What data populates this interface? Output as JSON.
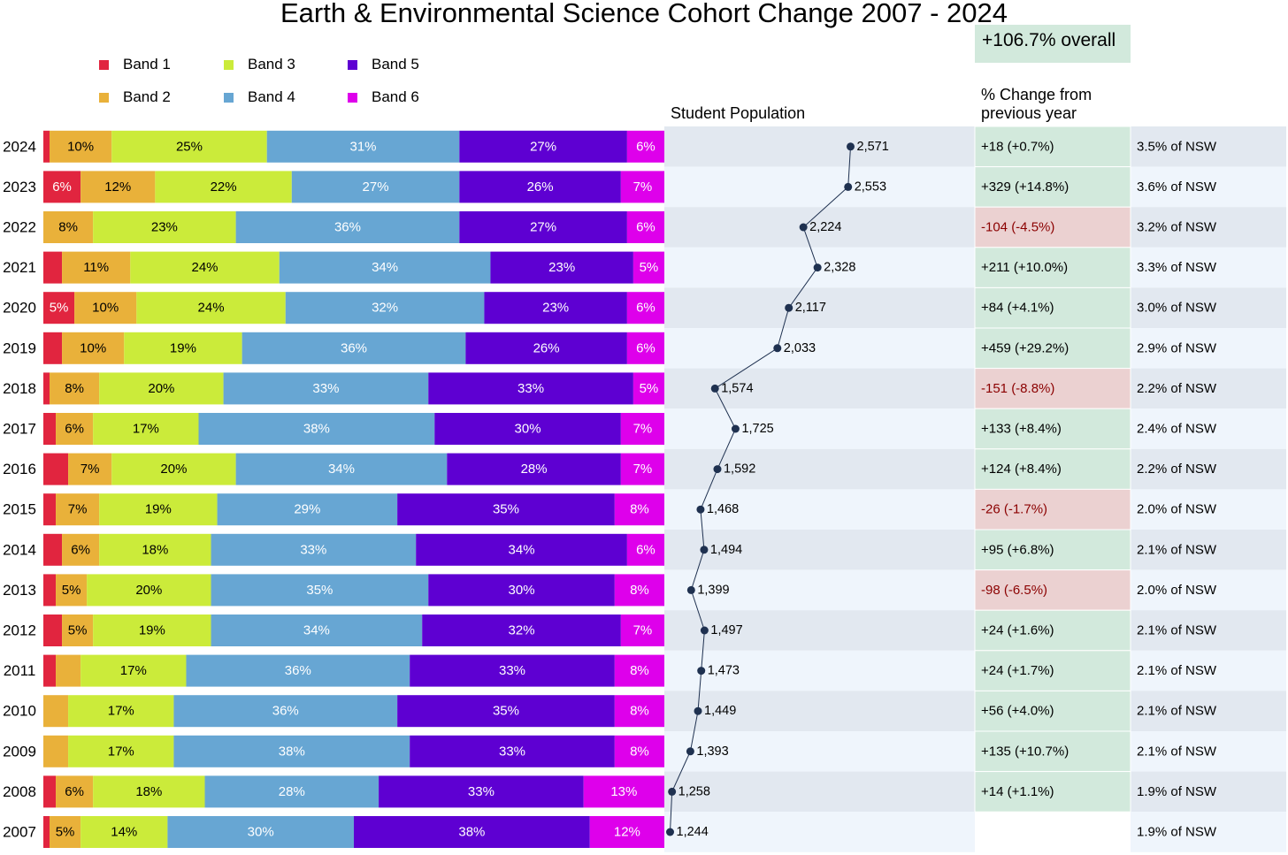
{
  "chart_data": {
    "type": "bar",
    "title": "Earth & Environmental Science Cohort Change 2007 - 2024",
    "overall_change": "+106.7% overall",
    "legend": [
      {
        "name": "Band 1",
        "color": "#e1253f"
      },
      {
        "name": "Band 2",
        "color": "#e9b13a"
      },
      {
        "name": "Band 3",
        "color": "#cbeb3a"
      },
      {
        "name": "Band 4",
        "color": "#67a6d3"
      },
      {
        "name": "Band 5",
        "color": "#5e00d2"
      },
      {
        "name": "Band 6",
        "color": "#de00eb"
      }
    ],
    "population_header": "Student Population",
    "change_header": "% Change from previous year",
    "label_colors": {
      "band1": "#ffffff",
      "band2": "#000000",
      "band3": "#000000",
      "band4": "#ffffff",
      "band5": "#ffffff",
      "band6": "#ffffff"
    },
    "positive_bg": "#d2e9dc",
    "negative_bg": "#ebd1d1",
    "negative_text": "#8b0000",
    "line_color": "#1f3150",
    "rows": [
      {
        "year": "2024",
        "bands": [
          1,
          10,
          25,
          31,
          27,
          6
        ],
        "labels": [
          "",
          "10%",
          "25%",
          "31%",
          "27%",
          "6%"
        ],
        "population": 2571,
        "population_label": "2,571",
        "change": "+18  (+0.7%)",
        "change_sign": "positive",
        "nsw": "3.5% of NSW"
      },
      {
        "year": "2023",
        "bands": [
          6,
          12,
          22,
          27,
          26,
          7
        ],
        "labels": [
          "6%",
          "12%",
          "22%",
          "27%",
          "26%",
          "7%"
        ],
        "population": 2553,
        "population_label": "2,553",
        "change": "+329  (+14.8%)",
        "change_sign": "positive",
        "nsw": "3.6% of NSW"
      },
      {
        "year": "2022",
        "bands": [
          0,
          8,
          23,
          36,
          27,
          6
        ],
        "labels": [
          "",
          "8%",
          "23%",
          "36%",
          "27%",
          "6%"
        ],
        "population": 2224,
        "population_label": "2,224",
        "change": "-104  (-4.5%)",
        "change_sign": "negative",
        "nsw": "3.2% of NSW"
      },
      {
        "year": "2021",
        "bands": [
          3,
          11,
          24,
          34,
          23,
          5
        ],
        "labels": [
          "",
          "11%",
          "24%",
          "34%",
          "23%",
          "5%"
        ],
        "population": 2328,
        "population_label": "2,328",
        "change": "+211  (+10.0%)",
        "change_sign": "positive",
        "nsw": "3.3% of NSW"
      },
      {
        "year": "2020",
        "bands": [
          5,
          10,
          24,
          32,
          23,
          6
        ],
        "labels": [
          "5%",
          "10%",
          "24%",
          "32%",
          "23%",
          "6%"
        ],
        "population": 2117,
        "population_label": "2,117",
        "change": "+84  (+4.1%)",
        "change_sign": "positive",
        "nsw": "3.0% of NSW"
      },
      {
        "year": "2019",
        "bands": [
          3,
          10,
          19,
          36,
          26,
          6
        ],
        "labels": [
          "",
          "10%",
          "19%",
          "36%",
          "26%",
          "6%"
        ],
        "population": 2033,
        "population_label": "2,033",
        "change": "+459  (+29.2%)",
        "change_sign": "positive",
        "nsw": "2.9% of NSW"
      },
      {
        "year": "2018",
        "bands": [
          1,
          8,
          20,
          33,
          33,
          5
        ],
        "labels": [
          "",
          "8%",
          "20%",
          "33%",
          "33%",
          "5%"
        ],
        "population": 1574,
        "population_label": "1,574",
        "change": "-151  (-8.8%)",
        "change_sign": "negative",
        "nsw": "2.2% of NSW"
      },
      {
        "year": "2017",
        "bands": [
          2,
          6,
          17,
          38,
          30,
          7
        ],
        "labels": [
          "",
          "6%",
          "17%",
          "38%",
          "30%",
          "7%"
        ],
        "population": 1725,
        "population_label": "1,725",
        "change": "+133  (+8.4%)",
        "change_sign": "positive",
        "nsw": "2.4% of NSW"
      },
      {
        "year": "2016",
        "bands": [
          4,
          7,
          20,
          34,
          28,
          7
        ],
        "labels": [
          "",
          "7%",
          "20%",
          "34%",
          "28%",
          "7%"
        ],
        "population": 1592,
        "population_label": "1,592",
        "change": "+124  (+8.4%)",
        "change_sign": "positive",
        "nsw": "2.2% of NSW"
      },
      {
        "year": "2015",
        "bands": [
          2,
          7,
          19,
          29,
          35,
          8
        ],
        "labels": [
          "",
          "7%",
          "19%",
          "29%",
          "35%",
          "8%"
        ],
        "population": 1468,
        "population_label": "1,468",
        "change": "-26  (-1.7%)",
        "change_sign": "negative",
        "nsw": "2.0% of NSW"
      },
      {
        "year": "2014",
        "bands": [
          3,
          6,
          18,
          33,
          34,
          6
        ],
        "labels": [
          "",
          "6%",
          "18%",
          "33%",
          "34%",
          "6%"
        ],
        "population": 1494,
        "population_label": "1,494",
        "change": "+95  (+6.8%)",
        "change_sign": "positive",
        "nsw": "2.1% of NSW"
      },
      {
        "year": "2013",
        "bands": [
          2,
          5,
          20,
          35,
          30,
          8
        ],
        "labels": [
          "",
          "5%",
          "20%",
          "35%",
          "30%",
          "8%"
        ],
        "population": 1399,
        "population_label": "1,399",
        "change": "-98  (-6.5%)",
        "change_sign": "negative",
        "nsw": "2.0% of NSW"
      },
      {
        "year": "2012",
        "bands": [
          3,
          5,
          19,
          34,
          32,
          7
        ],
        "labels": [
          "",
          "5%",
          "19%",
          "34%",
          "32%",
          "7%"
        ],
        "population": 1497,
        "population_label": "1,497",
        "change": "+24  (+1.6%)",
        "change_sign": "positive",
        "nsw": "2.1% of NSW"
      },
      {
        "year": "2011",
        "bands": [
          2,
          4,
          17,
          36,
          33,
          8
        ],
        "labels": [
          "",
          "",
          "17%",
          "36%",
          "33%",
          "8%"
        ],
        "population": 1473,
        "population_label": "1,473",
        "change": "+24  (+1.7%)",
        "change_sign": "positive",
        "nsw": "2.1% of NSW"
      },
      {
        "year": "2010",
        "bands": [
          0,
          4,
          17,
          36,
          35,
          8
        ],
        "labels": [
          "",
          "",
          "17%",
          "36%",
          "35%",
          "8%"
        ],
        "population": 1449,
        "population_label": "1,449",
        "change": "+56  (+4.0%)",
        "change_sign": "positive",
        "nsw": "2.1% of NSW"
      },
      {
        "year": "2009",
        "bands": [
          0,
          4,
          17,
          38,
          33,
          8
        ],
        "labels": [
          "",
          "",
          "17%",
          "38%",
          "33%",
          "8%"
        ],
        "population": 1393,
        "population_label": "1,393",
        "change": "+135  (+10.7%)",
        "change_sign": "positive",
        "nsw": "2.1% of NSW"
      },
      {
        "year": "2008",
        "bands": [
          2,
          6,
          18,
          28,
          33,
          13
        ],
        "labels": [
          "",
          "6%",
          "18%",
          "28%",
          "33%",
          "13%"
        ],
        "population": 1258,
        "population_label": "1,258",
        "change": "+14  (+1.1%)",
        "change_sign": "positive",
        "nsw": "1.9% of NSW"
      },
      {
        "year": "2007",
        "bands": [
          1,
          5,
          14,
          30,
          38,
          12
        ],
        "labels": [
          "",
          "5%",
          "14%",
          "30%",
          "38%",
          "12%"
        ],
        "population": 1244,
        "population_label": "1,244",
        "change": "",
        "change_sign": "none",
        "nsw": "1.9% of NSW"
      }
    ]
  }
}
